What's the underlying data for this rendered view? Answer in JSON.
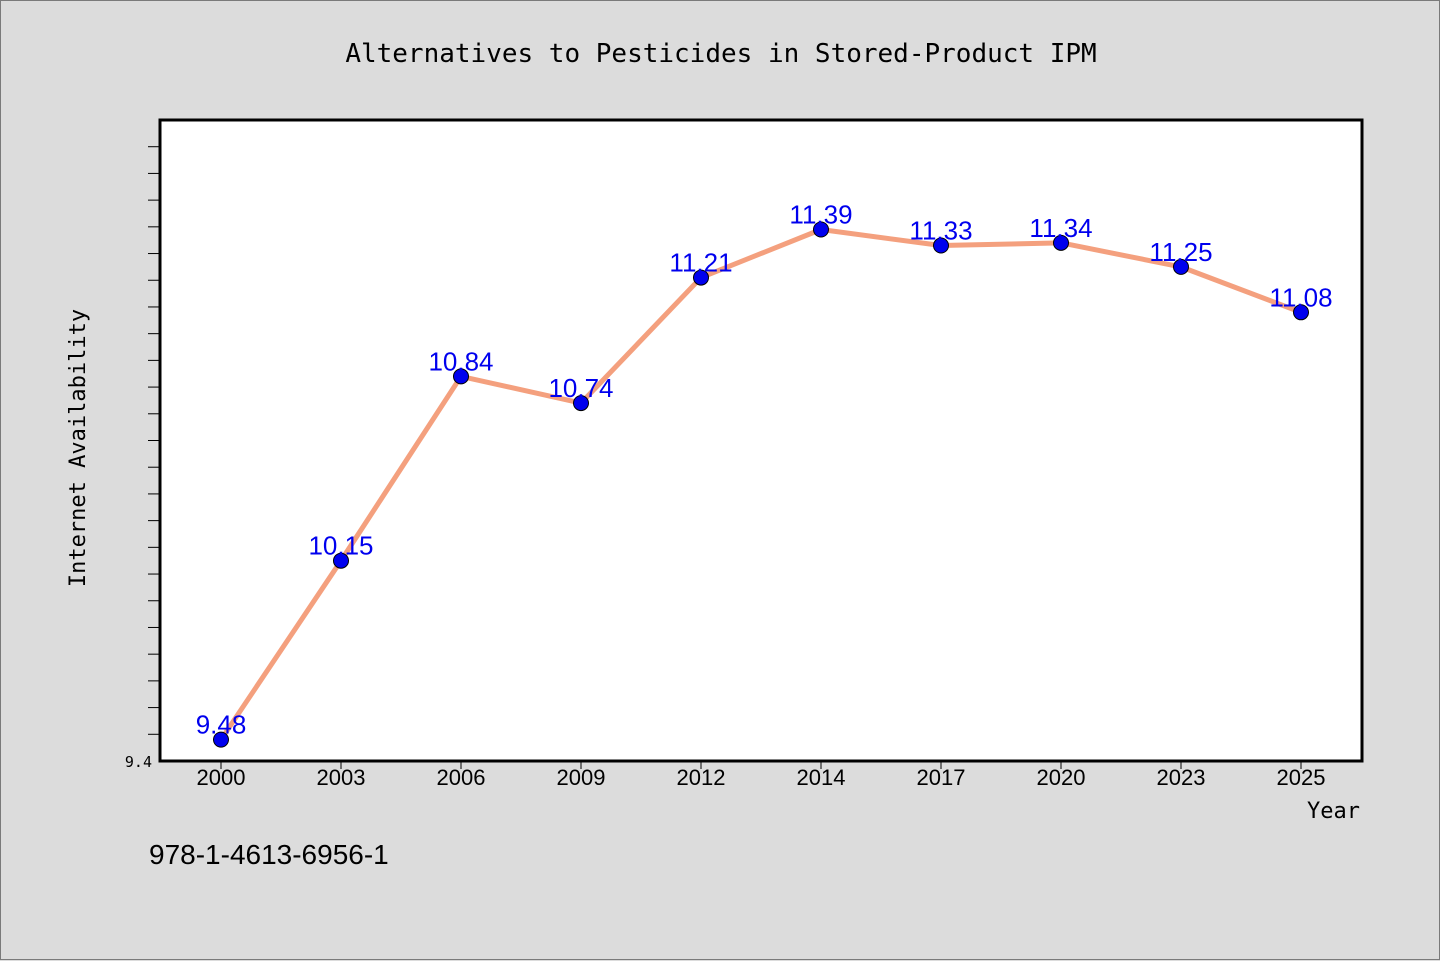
{
  "chart_data": {
    "type": "line",
    "title": "Alternatives to Pesticides in Stored-Product IPM",
    "xlabel": "Year",
    "ylabel": "Internet Availability",
    "categories": [
      "2000",
      "2003",
      "2006",
      "2009",
      "2012",
      "2014",
      "2017",
      "2020",
      "2023",
      "2025"
    ],
    "series": [
      {
        "values": [
          9.48,
          10.15,
          10.84,
          10.74,
          11.21,
          11.39,
          11.33,
          11.34,
          11.25,
          11.08
        ]
      }
    ],
    "data_labels": [
      "9.48",
      "10.15",
      "10.84",
      "10.74",
      "11.21",
      "11.39",
      "11.33",
      "11.34",
      "11.25",
      "11.08"
    ],
    "ylim": [
      9.4,
      11.8
    ],
    "yticks": [
      {
        "value": 9.4,
        "label": "9.4"
      }
    ],
    "grid": false,
    "line_color": "#f4a07e",
    "marker_color": "#0000ee",
    "label_color": "#0000ee"
  },
  "footer": {
    "isbn": "978-1-4613-6956-1"
  }
}
